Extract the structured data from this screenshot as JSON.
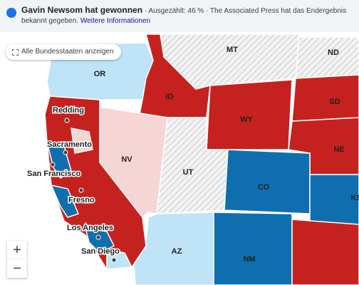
{
  "banner": {
    "title": "Gavin Newsom hat gewonnen",
    "counted": "· Ausgezählt: 46 %",
    "status": "· The Associated Press hat das Endergebnis bekannt gegeben.",
    "link": "Weitere Informationen"
  },
  "map": {
    "reset_button": "Alle Bundesstaaten anzeigen",
    "states": [
      "MT",
      "ND",
      "OR",
      "ID",
      "SD",
      "WY",
      "NE",
      "NV",
      "UT",
      "CO",
      "KS",
      "AZ",
      "NM"
    ],
    "cities": [
      "Redding",
      "Sacramento",
      "San Francisco",
      "Fresno",
      "Los Angeles",
      "San Diego"
    ],
    "zoom_in": "+",
    "zoom_out": "−"
  }
}
